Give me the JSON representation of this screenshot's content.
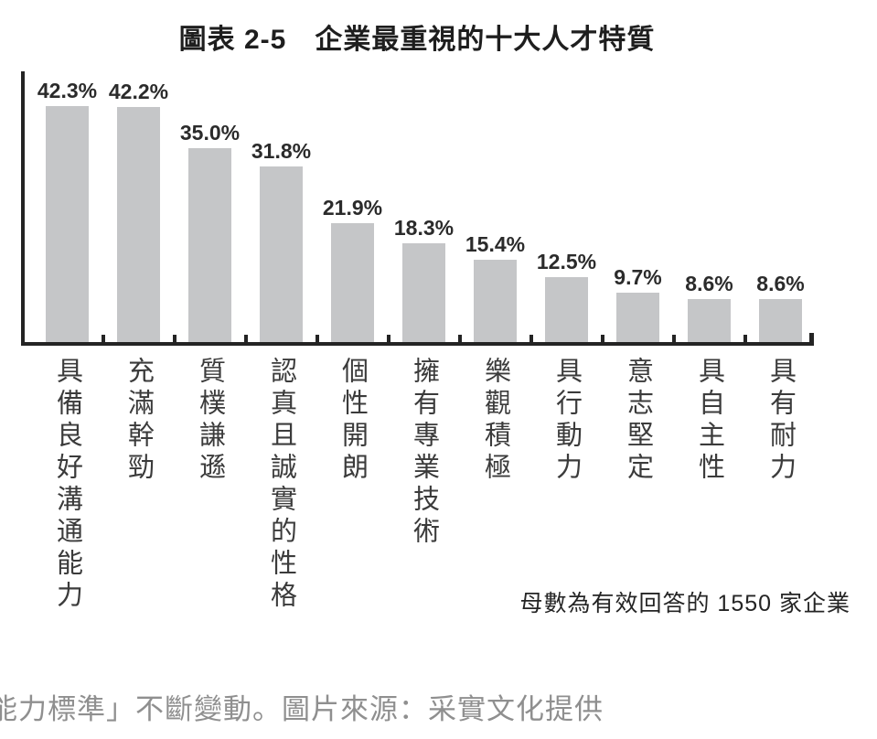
{
  "chart_data": {
    "type": "bar",
    "title": "圖表 2-5　企業最重視的十大人才特質",
    "categories": [
      "具備良好溝通能力",
      "充滿幹勁",
      "質樸謙遜",
      "認真且誠實的性格",
      "個性開朗",
      "擁有專業技術",
      "樂觀積極",
      "具行動力",
      "意志堅定",
      "具自主性",
      "具有耐力"
    ],
    "values": [
      42.3,
      42.2,
      35.0,
      31.8,
      21.9,
      18.3,
      15.4,
      12.5,
      9.7,
      8.6,
      8.6
    ],
    "value_labels": [
      "42.3%",
      "42.2%",
      "35.0%",
      "31.8%",
      "21.9%",
      "18.3%",
      "15.4%",
      "12.5%",
      "9.7%",
      "8.6%",
      "8.6%"
    ],
    "unit": "%",
    "ylim": [
      0,
      45
    ],
    "grid": false,
    "legend": "none",
    "bar_color": "#c5c6c8",
    "axis_color": "#242424",
    "footnote": "母數為有效回答的 1550 家企業"
  },
  "caption": {
    "text": "能力標準」不斷變動。圖片來源：采實文化提供"
  }
}
